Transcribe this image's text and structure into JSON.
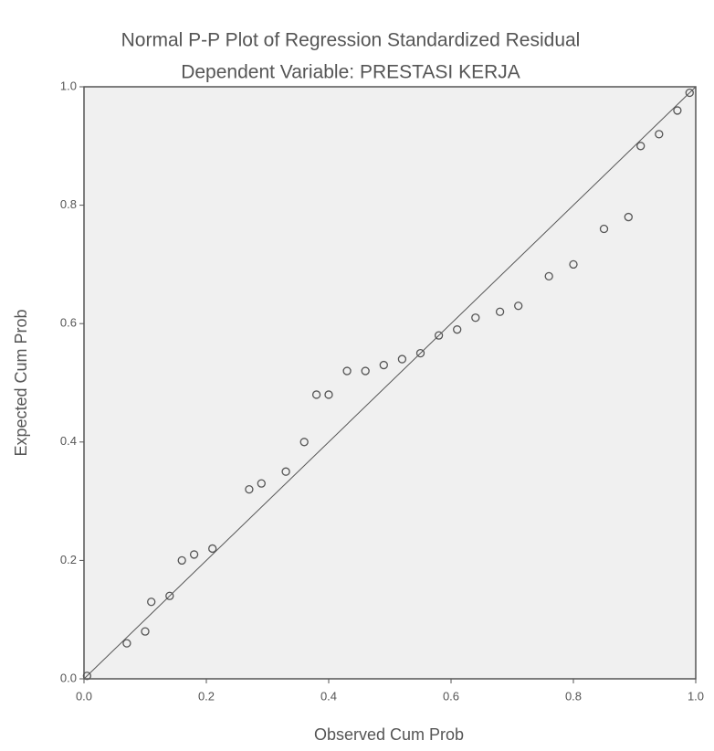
{
  "chart_data": {
    "type": "scatter",
    "title": "Normal P-P Plot of Regression Standardized Residual",
    "subtitle": "Dependent Variable: PRESTASI KERJA",
    "x_label": "Observed Cum Prob",
    "y_label": "Expected Cum Prob",
    "x": [
      0.005,
      0.07,
      0.1,
      0.11,
      0.14,
      0.16,
      0.18,
      0.21,
      0.27,
      0.29,
      0.33,
      0.36,
      0.38,
      0.4,
      0.43,
      0.46,
      0.49,
      0.52,
      0.55,
      0.58,
      0.61,
      0.64,
      0.68,
      0.71,
      0.76,
      0.8,
      0.85,
      0.89,
      0.91,
      0.94,
      0.97,
      0.99
    ],
    "values": [
      0.005,
      0.06,
      0.08,
      0.13,
      0.14,
      0.2,
      0.21,
      0.22,
      0.32,
      0.33,
      0.35,
      0.4,
      0.48,
      0.48,
      0.52,
      0.52,
      0.53,
      0.54,
      0.55,
      0.58,
      0.59,
      0.61,
      0.62,
      0.63,
      0.68,
      0.7,
      0.76,
      0.78,
      0.9,
      0.92,
      0.96,
      0.99
    ],
    "color": "#555555",
    "reference_line": true,
    "xlim": [
      0,
      1
    ],
    "ylim": [
      0,
      1
    ],
    "xticks": [
      {
        "value": 0,
        "label": "0.0"
      },
      {
        "value": 0.2,
        "label": "0.2"
      },
      {
        "value": 0.4,
        "label": "0.4"
      },
      {
        "value": 0.6,
        "label": "0.6"
      },
      {
        "value": 0.8,
        "label": "0.8"
      },
      {
        "value": 1,
        "label": "1.0"
      }
    ],
    "yticks": [
      {
        "value": 0,
        "label": "0.0"
      },
      {
        "value": 0.2,
        "label": "0.2"
      },
      {
        "value": 0.4,
        "label": "0.4"
      },
      {
        "value": 0.6,
        "label": "0.6"
      },
      {
        "value": 0.8,
        "label": "0.8"
      },
      {
        "value": 1,
        "label": "1.0"
      }
    ]
  }
}
